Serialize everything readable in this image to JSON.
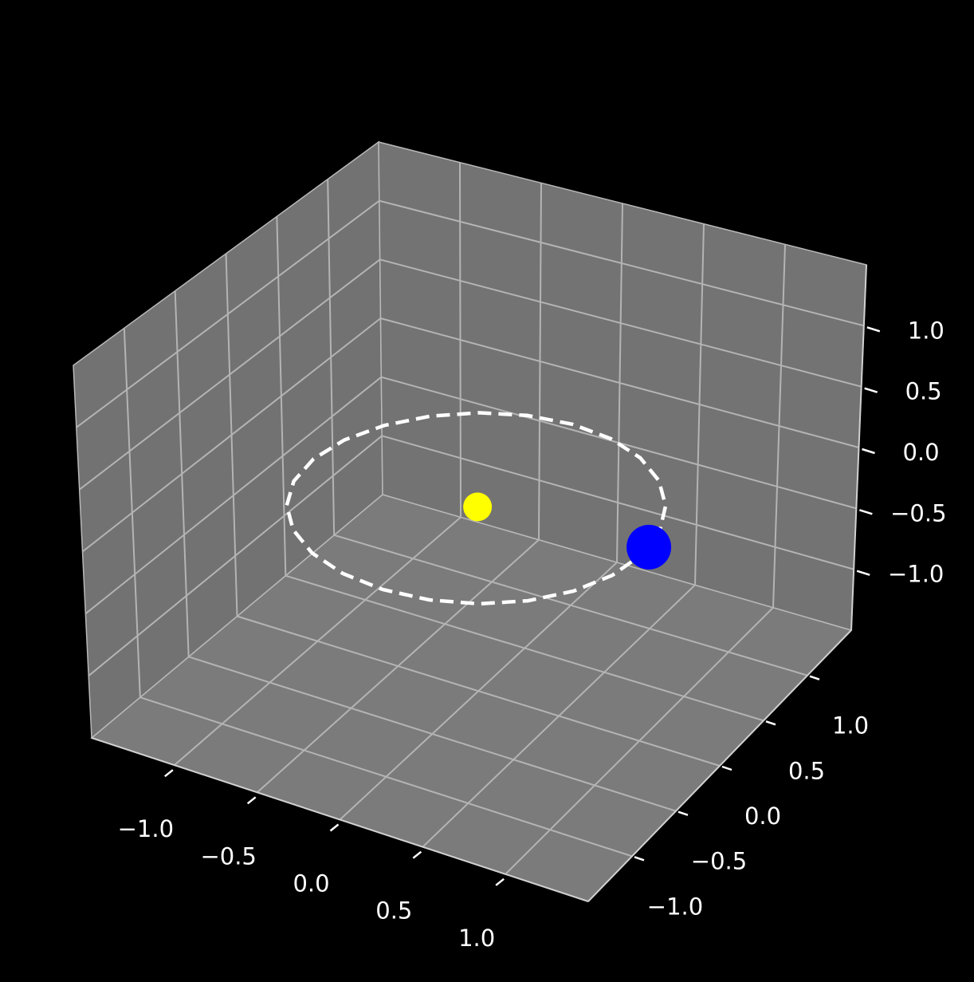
{
  "chart_data": {
    "type": "scatter3d",
    "xlim": [
      -1.5,
      1.5
    ],
    "ylim": [
      -1.5,
      1.5
    ],
    "zlim": [
      -1.5,
      1.5
    ],
    "xticks": [
      {
        "value": -1,
        "label": "−1.0"
      },
      {
        "value": -0.5,
        "label": "−0.5"
      },
      {
        "value": 0,
        "label": "0.0"
      },
      {
        "value": 0.5,
        "label": "0.5"
      },
      {
        "value": 1,
        "label": "1.0"
      }
    ],
    "yticks": [
      {
        "value": -1,
        "label": "−1.0"
      },
      {
        "value": -0.5,
        "label": "−0.5"
      },
      {
        "value": 0,
        "label": "0.0"
      },
      {
        "value": 0.5,
        "label": "0.5"
      },
      {
        "value": 1,
        "label": "1.0"
      }
    ],
    "zticks": [
      {
        "value": -1,
        "label": "−1.0"
      },
      {
        "value": -0.5,
        "label": "−0.5"
      },
      {
        "value": 0,
        "label": "0.0"
      },
      {
        "value": 0.5,
        "label": "0.5"
      },
      {
        "value": 1,
        "label": "1.0"
      }
    ],
    "grid": true,
    "series": [
      {
        "kind": "line",
        "color": "#ffffff",
        "dash": true,
        "x": [
          1,
          0.966,
          0.866,
          0.707,
          0.5,
          0.259,
          0,
          -0.259,
          -0.5,
          -0.707,
          -0.866,
          -0.966,
          -1,
          -0.966,
          -0.866,
          -0.707,
          -0.5,
          -0.259,
          0,
          0.259,
          0.5,
          0.707,
          0.866,
          0.966,
          1
        ],
        "y": [
          0,
          0.259,
          0.5,
          0.707,
          0.866,
          0.966,
          1,
          0.966,
          0.866,
          0.707,
          0.5,
          0.259,
          0,
          -0.259,
          -0.5,
          -0.707,
          -0.866,
          -0.966,
          -1,
          -0.966,
          -0.866,
          -0.707,
          -0.5,
          -0.259,
          0
        ],
        "z": [
          0,
          0,
          0,
          0,
          0,
          0,
          0,
          0,
          0,
          0,
          0,
          0,
          0,
          0,
          0,
          0,
          0,
          0,
          0,
          0,
          0,
          0,
          0,
          0,
          0
        ]
      },
      {
        "kind": "point",
        "color": "#ffff00",
        "size": 18,
        "x": [
          0
        ],
        "y": [
          0
        ],
        "z": [
          0
        ]
      },
      {
        "kind": "point",
        "color": "#0000ff",
        "size": 28,
        "x": [
          0.996
        ],
        "y": [
          0.087
        ],
        "z": [
          0
        ]
      }
    ]
  }
}
